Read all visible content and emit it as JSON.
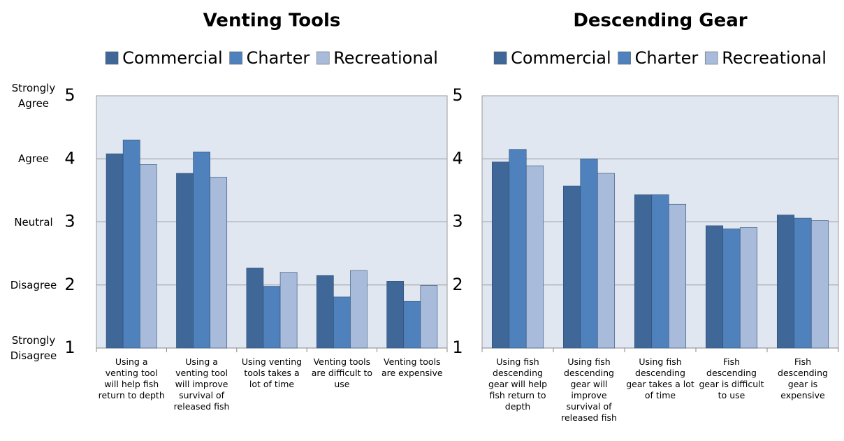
{
  "chart_data": [
    {
      "type": "bar",
      "title": "Venting Tools",
      "categories": [
        "Using a venting tool will help fish return to depth",
        "Using a venting tool will improve survival of released fish",
        "Using venting tools takes a lot of time",
        "Venting tools are difficult to use",
        "Venting tools are expensive"
      ],
      "series": [
        {
          "name": "Commercial",
          "color": "#3f6798",
          "values": [
            4.08,
            3.77,
            2.27,
            2.15,
            2.06
          ]
        },
        {
          "name": "Charter",
          "color": "#4f81bd",
          "values": [
            4.3,
            4.11,
            1.98,
            1.81,
            1.74
          ]
        },
        {
          "name": "Recreational",
          "color": "#a8bbdb",
          "values": [
            3.91,
            3.71,
            2.2,
            2.23,
            1.99
          ]
        }
      ],
      "ylim": [
        1,
        5
      ],
      "yticks": [
        1,
        2,
        3,
        4,
        5
      ],
      "ytick_descriptions": [
        "Strongly Disagree",
        "Disagree",
        "Neutral",
        "Agree",
        "Strongly Agree"
      ],
      "grid": true
    },
    {
      "type": "bar",
      "title": "Descending Gear",
      "categories": [
        "Using fish descending gear will help fish return to depth",
        "Using fish descending gear will improve survival of released fish",
        "Using fish descending gear takes a lot of time",
        "Fish descending gear is difficult to use",
        "Fish descending gear is expensive"
      ],
      "series": [
        {
          "name": "Commercial",
          "color": "#3f6798",
          "values": [
            3.95,
            3.57,
            3.43,
            2.94,
            3.11
          ]
        },
        {
          "name": "Charter",
          "color": "#4f81bd",
          "values": [
            4.15,
            4.0,
            3.43,
            2.89,
            3.06
          ]
        },
        {
          "name": "Recreational",
          "color": "#a8bbdb",
          "values": [
            3.89,
            3.77,
            3.28,
            2.91,
            3.02
          ]
        }
      ],
      "ylim": [
        1,
        5
      ],
      "yticks": [
        1,
        2,
        3,
        4,
        5
      ],
      "grid": true
    }
  ]
}
